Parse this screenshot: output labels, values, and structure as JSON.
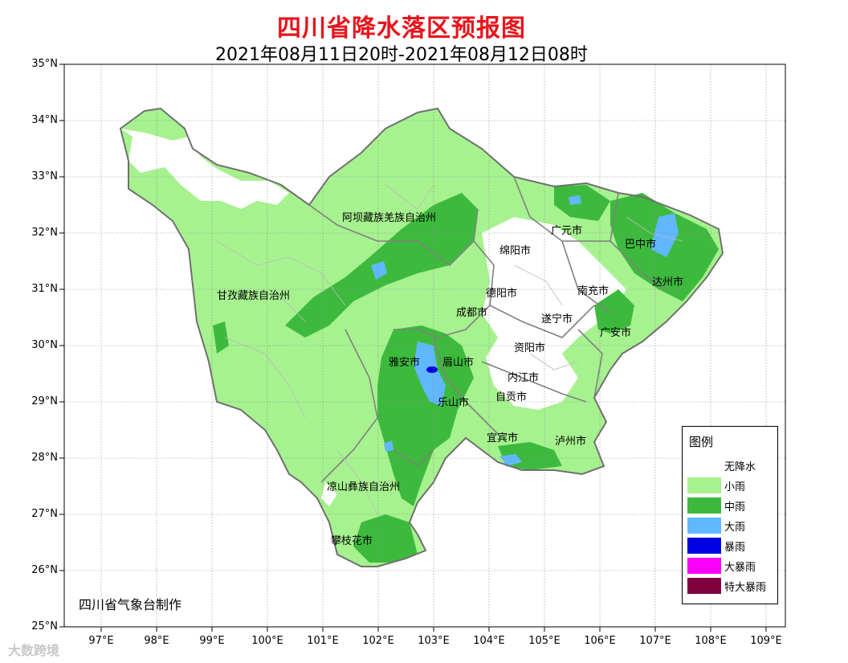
{
  "title": "四川省降水落区预报图",
  "subtitle": "2021年08月11日20时-2021年08月12日08时",
  "agency": "四川省气象台制作",
  "watermark": "大数跨境",
  "lat_ticks": [
    "35°N",
    "34°N",
    "33°N",
    "32°N",
    "31°N",
    "30°N",
    "29°N",
    "28°N",
    "27°N",
    "26°N",
    "25°N"
  ],
  "lon_ticks": [
    "97°E",
    "98°E",
    "99°E",
    "100°E",
    "101°E",
    "102°E",
    "103°E",
    "104°E",
    "105°E",
    "106°E",
    "107°E",
    "108°E",
    "109°E"
  ],
  "labels": {
    "aba": "阿坝藏族羌族自治州",
    "ganzi": "甘孜藏族自治州",
    "liangshan": "凉山彝族自治州",
    "panzhihua": "攀枝花市",
    "guangyuan": "广元市",
    "bazhong": "巴中市",
    "mianyang": "绵阳市",
    "dazhou": "达州市",
    "deyang": "德阳市",
    "nanchong": "南充市",
    "chengdu": "成都市",
    "suining": "遂宁市",
    "guangan": "广安市",
    "ziyang": "资阳市",
    "yaan": "雅安市",
    "meishan": "眉山市",
    "neijiang": "内江市",
    "zigong": "自贡市",
    "leshan": "乐山市",
    "yibin": "宜宾市",
    "luzhou": "泸州市"
  },
  "legend": {
    "title": "图例",
    "items": [
      {
        "label": "无降水",
        "color": "#ffffff"
      },
      {
        "label": "小雨",
        "color": "#a6f28f"
      },
      {
        "label": "中雨",
        "color": "#3dba3d"
      },
      {
        "label": "大雨",
        "color": "#61b8ff"
      },
      {
        "label": "暴雨",
        "color": "#0000e1"
      },
      {
        "label": "大暴雨",
        "color": "#fa00fa"
      },
      {
        "label": "特大暴雨",
        "color": "#800040"
      }
    ]
  }
}
